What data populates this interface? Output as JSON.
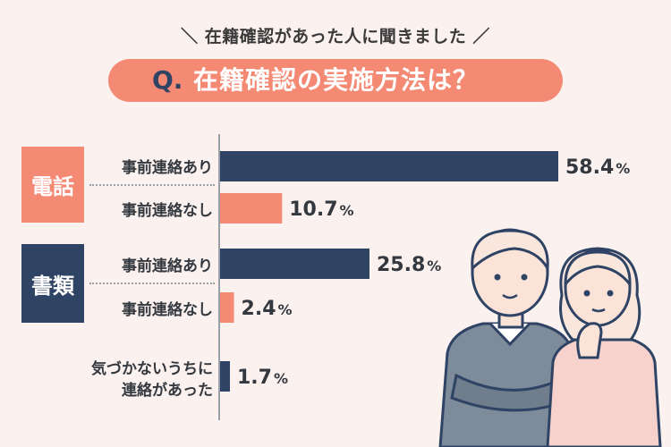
{
  "header": {
    "subtitle": "＼ 在籍確認があった人に聞きました ／",
    "title_q": "Q.",
    "title": "在籍確認の実施方法は？"
  },
  "groups": {
    "phone": "電話",
    "document": "書類"
  },
  "row_labels": {
    "phone_with_notice": "事前連絡あり",
    "phone_without_notice": "事前連絡なし",
    "doc_with_notice": "事前連絡あり",
    "doc_without_notice": "事前連絡なし",
    "unnoticed_line1": "気づかないうちに",
    "unnoticed_line2": "連絡があった"
  },
  "chart_data": {
    "type": "bar",
    "orientation": "horizontal",
    "title": "在籍確認の実施方法は？",
    "categories": [
      "電話 事前連絡あり",
      "電話 事前連絡なし",
      "書類 事前連絡あり",
      "書類 事前連絡なし",
      "気づかないうちに連絡があった"
    ],
    "values": [
      58.4,
      10.7,
      25.8,
      2.4,
      1.7
    ],
    "value_labels": [
      "58.4",
      "10.7",
      "25.8",
      "2.4",
      "1.7"
    ],
    "unit": "%",
    "colors": [
      "#2f4364",
      "#f58a74",
      "#2f4364",
      "#f58a74",
      "#2f4364"
    ],
    "xlim": [
      0,
      58.4
    ],
    "grid": false,
    "legend": "none"
  },
  "colors": {
    "background": "#fbf1ef",
    "navy": "#2f4364",
    "coral": "#f58a74"
  }
}
